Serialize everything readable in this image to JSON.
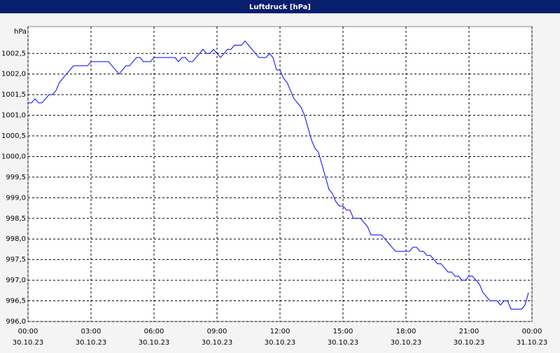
{
  "chart_data": {
    "type": "line",
    "title": "Luftdruck [hPa]",
    "y_label": "hPa",
    "x": [
      0,
      10,
      20,
      30,
      40,
      50,
      60,
      70,
      80,
      90,
      100,
      110,
      120,
      130,
      140,
      150,
      160,
      170,
      180,
      190,
      200,
      210,
      220,
      230,
      240,
      250,
      260,
      270,
      280,
      290,
      300,
      310,
      320,
      330,
      340,
      350,
      360,
      370,
      380,
      390,
      400,
      410,
      420,
      430,
      440,
      450,
      460,
      470,
      480,
      490,
      500,
      510,
      520,
      530,
      540,
      550,
      560,
      570,
      580,
      590,
      600,
      610,
      620,
      630,
      640,
      650,
      660,
      670,
      680,
      690,
      700,
      710,
      720,
      730,
      740,
      750,
      760,
      770,
      780,
      790,
      800,
      810,
      820,
      830,
      840,
      850,
      860,
      870,
      880,
      890,
      900,
      910,
      920,
      930,
      940,
      950,
      960,
      970,
      980,
      990,
      1000,
      1010,
      1020,
      1030,
      1040,
      1050,
      1060,
      1070,
      1080,
      1090,
      1100,
      1110,
      1120,
      1130,
      1140,
      1150,
      1160,
      1170,
      1180,
      1190,
      1200,
      1210,
      1220,
      1230,
      1240,
      1250,
      1260,
      1270,
      1280,
      1290,
      1300,
      1310,
      1320,
      1330,
      1340,
      1350,
      1360,
      1370,
      1380,
      1390,
      1400,
      1410,
      1420,
      1430
    ],
    "series": [
      {
        "name": "Luftdruck",
        "color": "#0000ff",
        "values": [
          1001.3,
          1001.3,
          1001.4,
          1001.3,
          1001.3,
          1001.4,
          1001.5,
          1001.5,
          1001.6,
          1001.8,
          1001.9,
          1002.0,
          1002.1,
          1002.2,
          1002.2,
          1002.2,
          1002.2,
          1002.2,
          1002.3,
          1002.3,
          1002.3,
          1002.3,
          1002.3,
          1002.3,
          1002.2,
          1002.1,
          1002.0,
          1002.1,
          1002.2,
          1002.2,
          1002.3,
          1002.4,
          1002.4,
          1002.3,
          1002.3,
          1002.3,
          1002.4,
          1002.4,
          1002.4,
          1002.4,
          1002.4,
          1002.4,
          1002.4,
          1002.3,
          1002.4,
          1002.4,
          1002.3,
          1002.3,
          1002.4,
          1002.5,
          1002.6,
          1002.5,
          1002.5,
          1002.6,
          1002.5,
          1002.4,
          1002.5,
          1002.6,
          1002.6,
          1002.7,
          1002.7,
          1002.7,
          1002.8,
          1002.7,
          1002.6,
          1002.5,
          1002.4,
          1002.4,
          1002.4,
          1002.5,
          1002.4,
          1002.1,
          1002.1,
          1001.9,
          1001.8,
          1001.6,
          1001.4,
          1001.3,
          1001.2,
          1001.0,
          1000.7,
          1000.4,
          1000.2,
          1000.1,
          999.8,
          999.5,
          999.2,
          999.1,
          998.9,
          998.8,
          998.8,
          998.7,
          998.7,
          998.5,
          998.5,
          998.5,
          998.4,
          998.3,
          998.1,
          998.1,
          998.1,
          998.1,
          998.0,
          997.9,
          997.8,
          997.7,
          997.7,
          997.7,
          997.7,
          997.7,
          997.8,
          997.8,
          997.7,
          997.7,
          997.6,
          997.6,
          997.5,
          997.4,
          997.4,
          997.3,
          997.2,
          997.2,
          997.1,
          997.1,
          997.0,
          997.0,
          997.1,
          997.1,
          997.0,
          996.9,
          996.7,
          996.6,
          996.5,
          996.5,
          996.5,
          996.4,
          996.5,
          996.5,
          996.3,
          996.3,
          996.3,
          996.3,
          996.4,
          996.7
        ]
      }
    ],
    "xlim": [
      0,
      1440
    ],
    "xticks": [
      {
        "value": 0,
        "label": "00:00",
        "date": "30.10.23"
      },
      {
        "value": 180,
        "label": "03:00",
        "date": "30.10.23"
      },
      {
        "value": 360,
        "label": "06:00",
        "date": "30.10.23"
      },
      {
        "value": 540,
        "label": "09:00",
        "date": "30.10.23"
      },
      {
        "value": 720,
        "label": "12:00",
        "date": "30.10.23"
      },
      {
        "value": 900,
        "label": "15:00",
        "date": "30.10.23"
      },
      {
        "value": 1080,
        "label": "18:00",
        "date": "30.10.23"
      },
      {
        "value": 1260,
        "label": "21:00",
        "date": "30.10.23"
      },
      {
        "value": 1440,
        "label": "00:00",
        "date": "31.10.23"
      }
    ],
    "ylim": [
      996,
      1003.15
    ],
    "yticks": [
      {
        "value": 996,
        "label": "996,0"
      },
      {
        "value": 996.5,
        "label": "996,5"
      },
      {
        "value": 997,
        "label": "997,0"
      },
      {
        "value": 997.5,
        "label": "997,5"
      },
      {
        "value": 998,
        "label": "998,0"
      },
      {
        "value": 998.5,
        "label": "998,5"
      },
      {
        "value": 999,
        "label": "999,0"
      },
      {
        "value": 999.5,
        "label": "999,5"
      },
      {
        "value": 1000,
        "label": "1000,0"
      },
      {
        "value": 1000.5,
        "label": "1000,5"
      },
      {
        "value": 1001,
        "label": "1001,0"
      },
      {
        "value": 1001.5,
        "label": "1001,5"
      },
      {
        "value": 1002,
        "label": "1002,0"
      },
      {
        "value": 1002.5,
        "label": "1002,5"
      }
    ],
    "grid": true
  }
}
